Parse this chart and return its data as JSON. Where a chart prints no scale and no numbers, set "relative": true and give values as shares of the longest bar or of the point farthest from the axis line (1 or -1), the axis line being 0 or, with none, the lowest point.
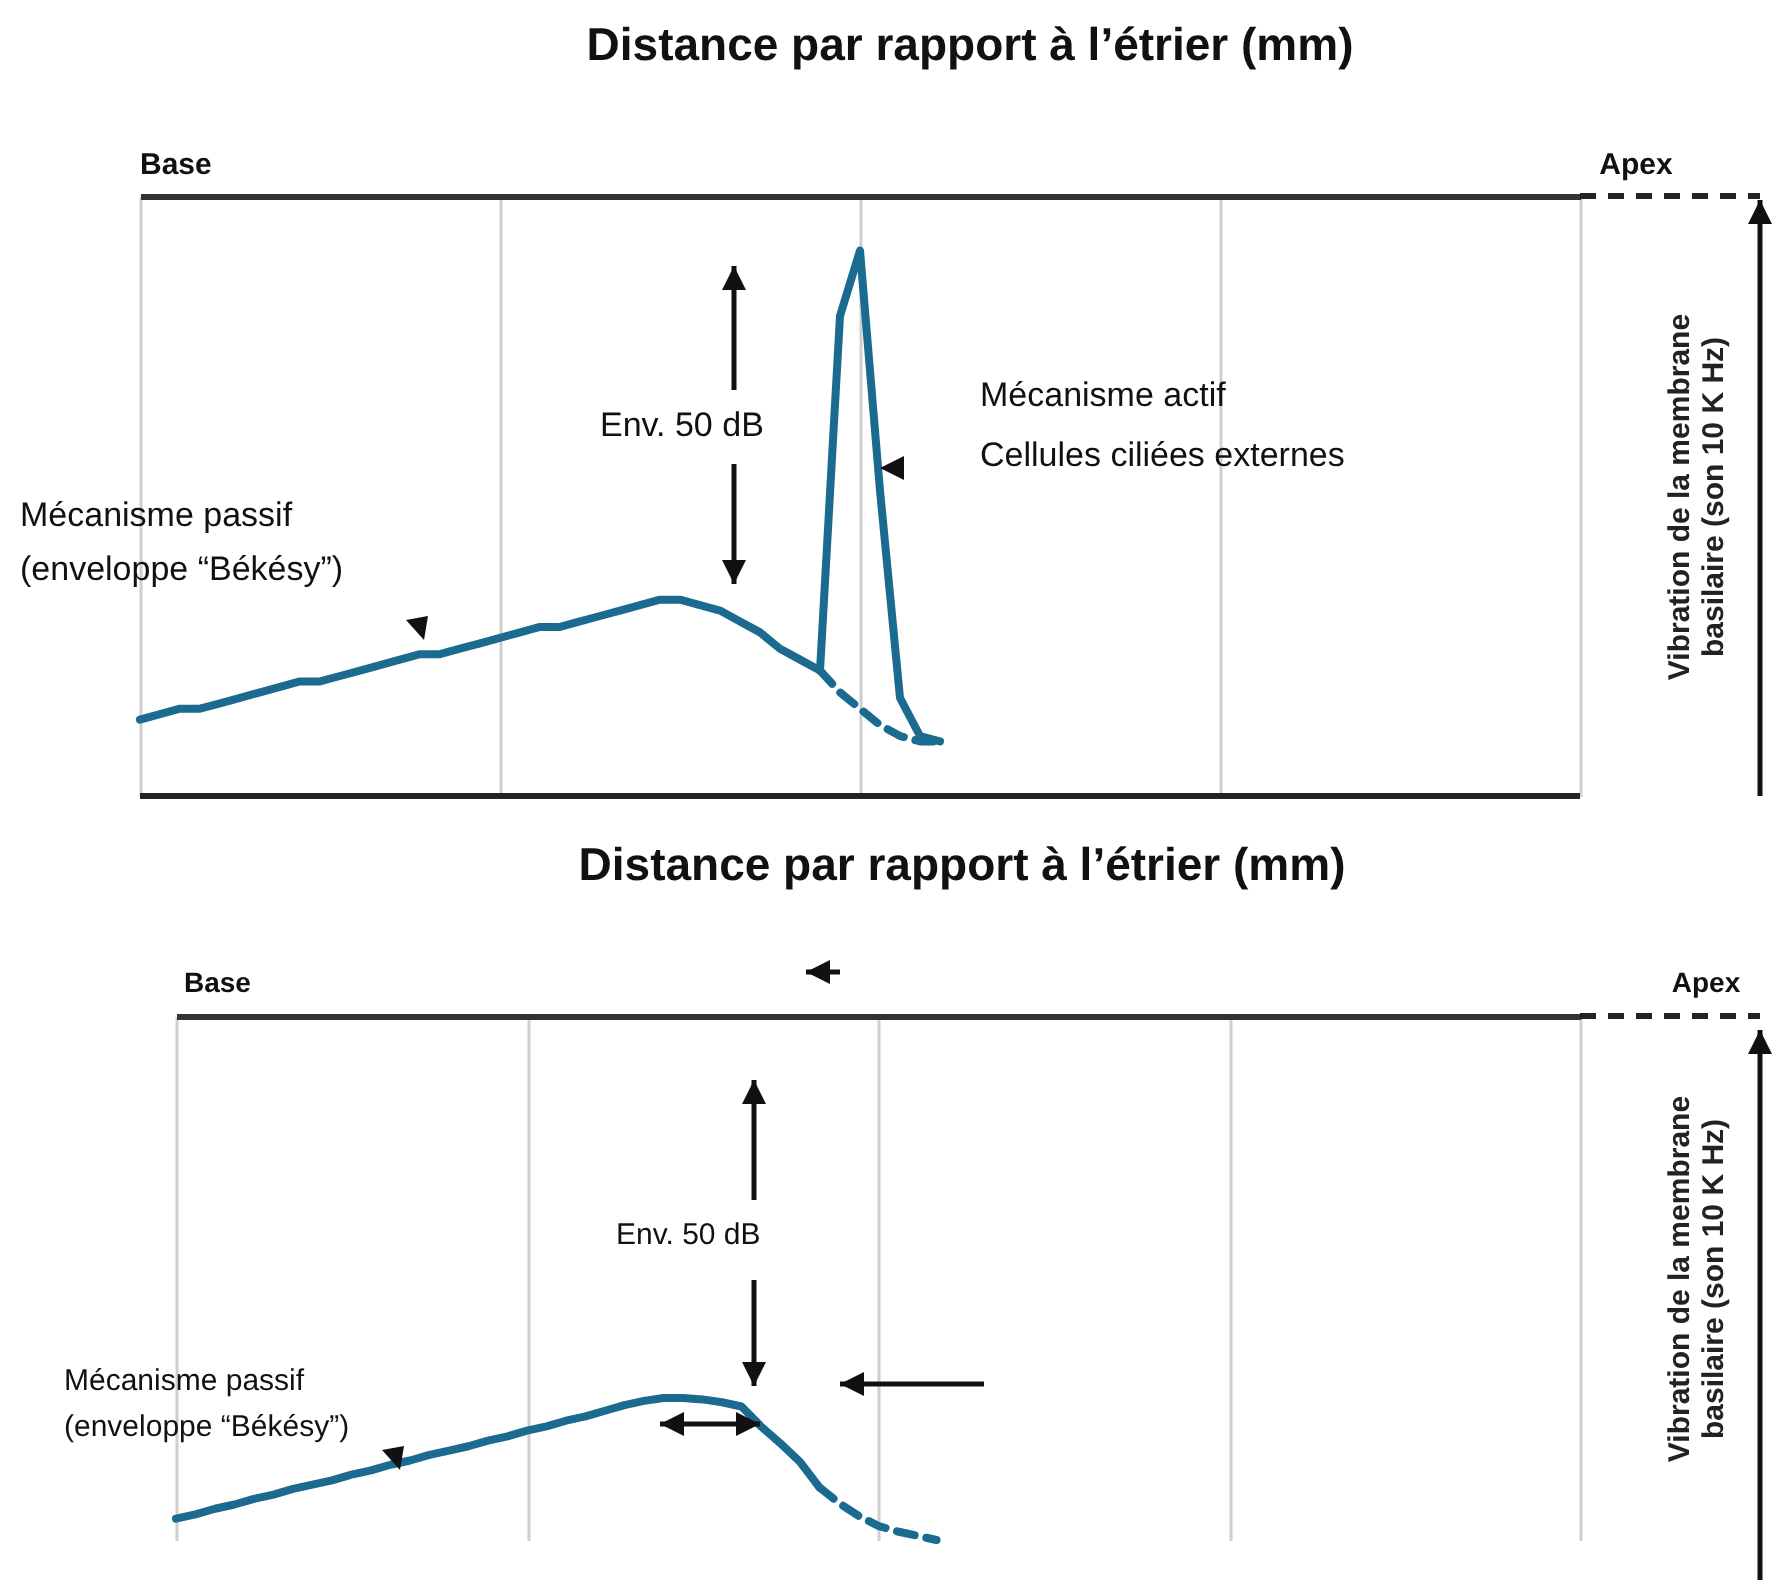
{
  "chart_data": [
    {
      "type": "line",
      "title": "Distance par rapport à l’étrier (mm)",
      "ylabel": "Vibration de la membrane basilaire (son 10 K Hz)",
      "relative": true,
      "grid": "x",
      "tick_labels": false,
      "legend": false,
      "categories": [
        null,
        null,
        null,
        null,
        null,
        null,
        null,
        null,
        null,
        null,
        null,
        null,
        null,
        null,
        null,
        null,
        null,
        null,
        null,
        null,
        null,
        null,
        null,
        null,
        null,
        null,
        null,
        null,
        null,
        null,
        null,
        null,
        null,
        null,
        null,
        null,
        null,
        null,
        null,
        null,
        null,
        null,
        null,
        null,
        null,
        null,
        null,
        null,
        null,
        null,
        null,
        null,
        null,
        null,
        null,
        null,
        null,
        null,
        null,
        null,
        null,
        null,
        null,
        null,
        null,
        null,
        null,
        null,
        null,
        null,
        null,
        null,
        null
      ],
      "series": [
        {
          "color": "#1b6a8f",
          "line_style": "solid",
          "values": [
            0.14,
            0.15,
            0.16,
            0.16,
            0.17,
            0.18,
            0.19,
            0.2,
            0.21,
            0.21,
            0.22,
            0.23,
            0.24,
            0.25,
            0.26,
            0.26,
            0.27,
            0.28,
            0.29,
            0.3,
            0.31,
            0.31,
            0.32,
            0.33,
            0.34,
            0.35,
            0.36,
            0.36,
            0.35,
            0.34,
            0.32,
            0.3,
            0.27,
            0.25,
            0.23,
            null,
            null,
            null,
            null,
            null,
            null,
            null,
            null,
            null,
            null,
            null,
            null,
            null,
            null,
            null,
            null,
            null,
            null,
            null,
            null,
            null,
            null,
            null,
            null,
            null,
            null,
            null,
            null,
            null,
            null,
            null,
            null,
            null,
            null,
            null,
            null,
            null,
            null
          ]
        },
        {
          "color": "#1b6a8f",
          "line_style": "dashed",
          "values": [
            null,
            null,
            null,
            null,
            null,
            null,
            null,
            null,
            null,
            null,
            null,
            null,
            null,
            null,
            null,
            null,
            null,
            null,
            null,
            null,
            null,
            null,
            null,
            null,
            null,
            null,
            null,
            null,
            null,
            null,
            null,
            null,
            null,
            null,
            0.23,
            0.19,
            0.16,
            0.13,
            0.11,
            0.1,
            0.1,
            null,
            null,
            null,
            null,
            null,
            null,
            null,
            null,
            null,
            null,
            null,
            null,
            null,
            null,
            null,
            null,
            null,
            null,
            null,
            null,
            null,
            null,
            null,
            null,
            null,
            null,
            null,
            null,
            null,
            null,
            null,
            null
          ]
        },
        {
          "color": "#1b6a8f",
          "line_style": "solid",
          "values": [
            null,
            null,
            null,
            null,
            null,
            null,
            null,
            null,
            null,
            null,
            null,
            null,
            null,
            null,
            null,
            null,
            null,
            null,
            null,
            null,
            null,
            null,
            null,
            null,
            null,
            null,
            null,
            null,
            null,
            null,
            null,
            null,
            null,
            null,
            0.23,
            0.88,
            1.0,
            0.56,
            0.18,
            0.11,
            0.1,
            null,
            null,
            null,
            null,
            null,
            null,
            null,
            null,
            null,
            null,
            null,
            null,
            null,
            null,
            null,
            null,
            null,
            null,
            null,
            null,
            null,
            null,
            null,
            null,
            null,
            null,
            null,
            null,
            null,
            null,
            null,
            null
          ]
        }
      ],
      "annotations": [
        "Base",
        "Apex",
        "Env. 50 dB",
        "Mécanisme actif",
        "Cellules ciliées externes",
        "Mécanisme passif",
        "(enveloppe “Békésy”)"
      ]
    },
    {
      "type": "line",
      "title": "Distance par rapport à l’étrier (mm)",
      "ylabel": "Vibration de la membrane basilaire (son 10 K Hz)",
      "relative": true,
      "grid": "x",
      "tick_labels": false,
      "legend": false,
      "categories": [
        null,
        null,
        null,
        null,
        null,
        null,
        null,
        null,
        null,
        null,
        null,
        null,
        null,
        null,
        null,
        null,
        null,
        null,
        null,
        null,
        null,
        null,
        null,
        null,
        null,
        null,
        null,
        null,
        null,
        null,
        null,
        null,
        null,
        null,
        null,
        null,
        null,
        null,
        null,
        null,
        null,
        null,
        null,
        null,
        null,
        null,
        null,
        null,
        null,
        null,
        null,
        null,
        null,
        null,
        null,
        null,
        null,
        null,
        null,
        null,
        null,
        null,
        null,
        null,
        null,
        null,
        null,
        null,
        null,
        null,
        null,
        null,
        null
      ],
      "series": [
        {
          "color": "#1b6a8f",
          "line_style": "solid",
          "values": [
            0.15,
            0.18,
            0.22,
            0.25,
            0.29,
            0.32,
            0.36,
            0.39,
            0.42,
            0.46,
            0.49,
            0.53,
            0.56,
            0.6,
            0.63,
            0.66,
            0.7,
            0.73,
            0.77,
            0.8,
            0.84,
            0.87,
            0.91,
            0.95,
            0.98,
            1.0,
            1.0,
            0.99,
            0.97,
            0.94,
            0.8,
            0.68,
            0.55,
            0.37,
            null,
            null,
            null,
            null,
            null,
            null,
            null,
            null,
            null,
            null,
            null,
            null,
            null,
            null,
            null,
            null,
            null,
            null,
            null,
            null,
            null,
            null,
            null,
            null,
            null,
            null,
            null,
            null,
            null,
            null,
            null,
            null,
            null,
            null,
            null,
            null,
            null,
            null,
            null
          ]
        },
        {
          "color": "#1b6a8f",
          "line_style": "dashed",
          "values": [
            null,
            null,
            null,
            null,
            null,
            null,
            null,
            null,
            null,
            null,
            null,
            null,
            null,
            null,
            null,
            null,
            null,
            null,
            null,
            null,
            null,
            null,
            null,
            null,
            null,
            null,
            null,
            null,
            null,
            null,
            null,
            null,
            null,
            0.37,
            0.26,
            0.17,
            0.1,
            0.06,
            0.03,
            0,
            null,
            null,
            null,
            null,
            null,
            null,
            null,
            null,
            null,
            null,
            null,
            null,
            null,
            null,
            null,
            null,
            null,
            null,
            null,
            null,
            null,
            null,
            null,
            null,
            null,
            null,
            null,
            null,
            null,
            null,
            null,
            null,
            null
          ]
        }
      ],
      "annotations": [
        "Base",
        "Apex",
        "Env. 50 dB",
        "Mécanisme passif",
        "(enveloppe “Békésy”)"
      ]
    }
  ]
}
